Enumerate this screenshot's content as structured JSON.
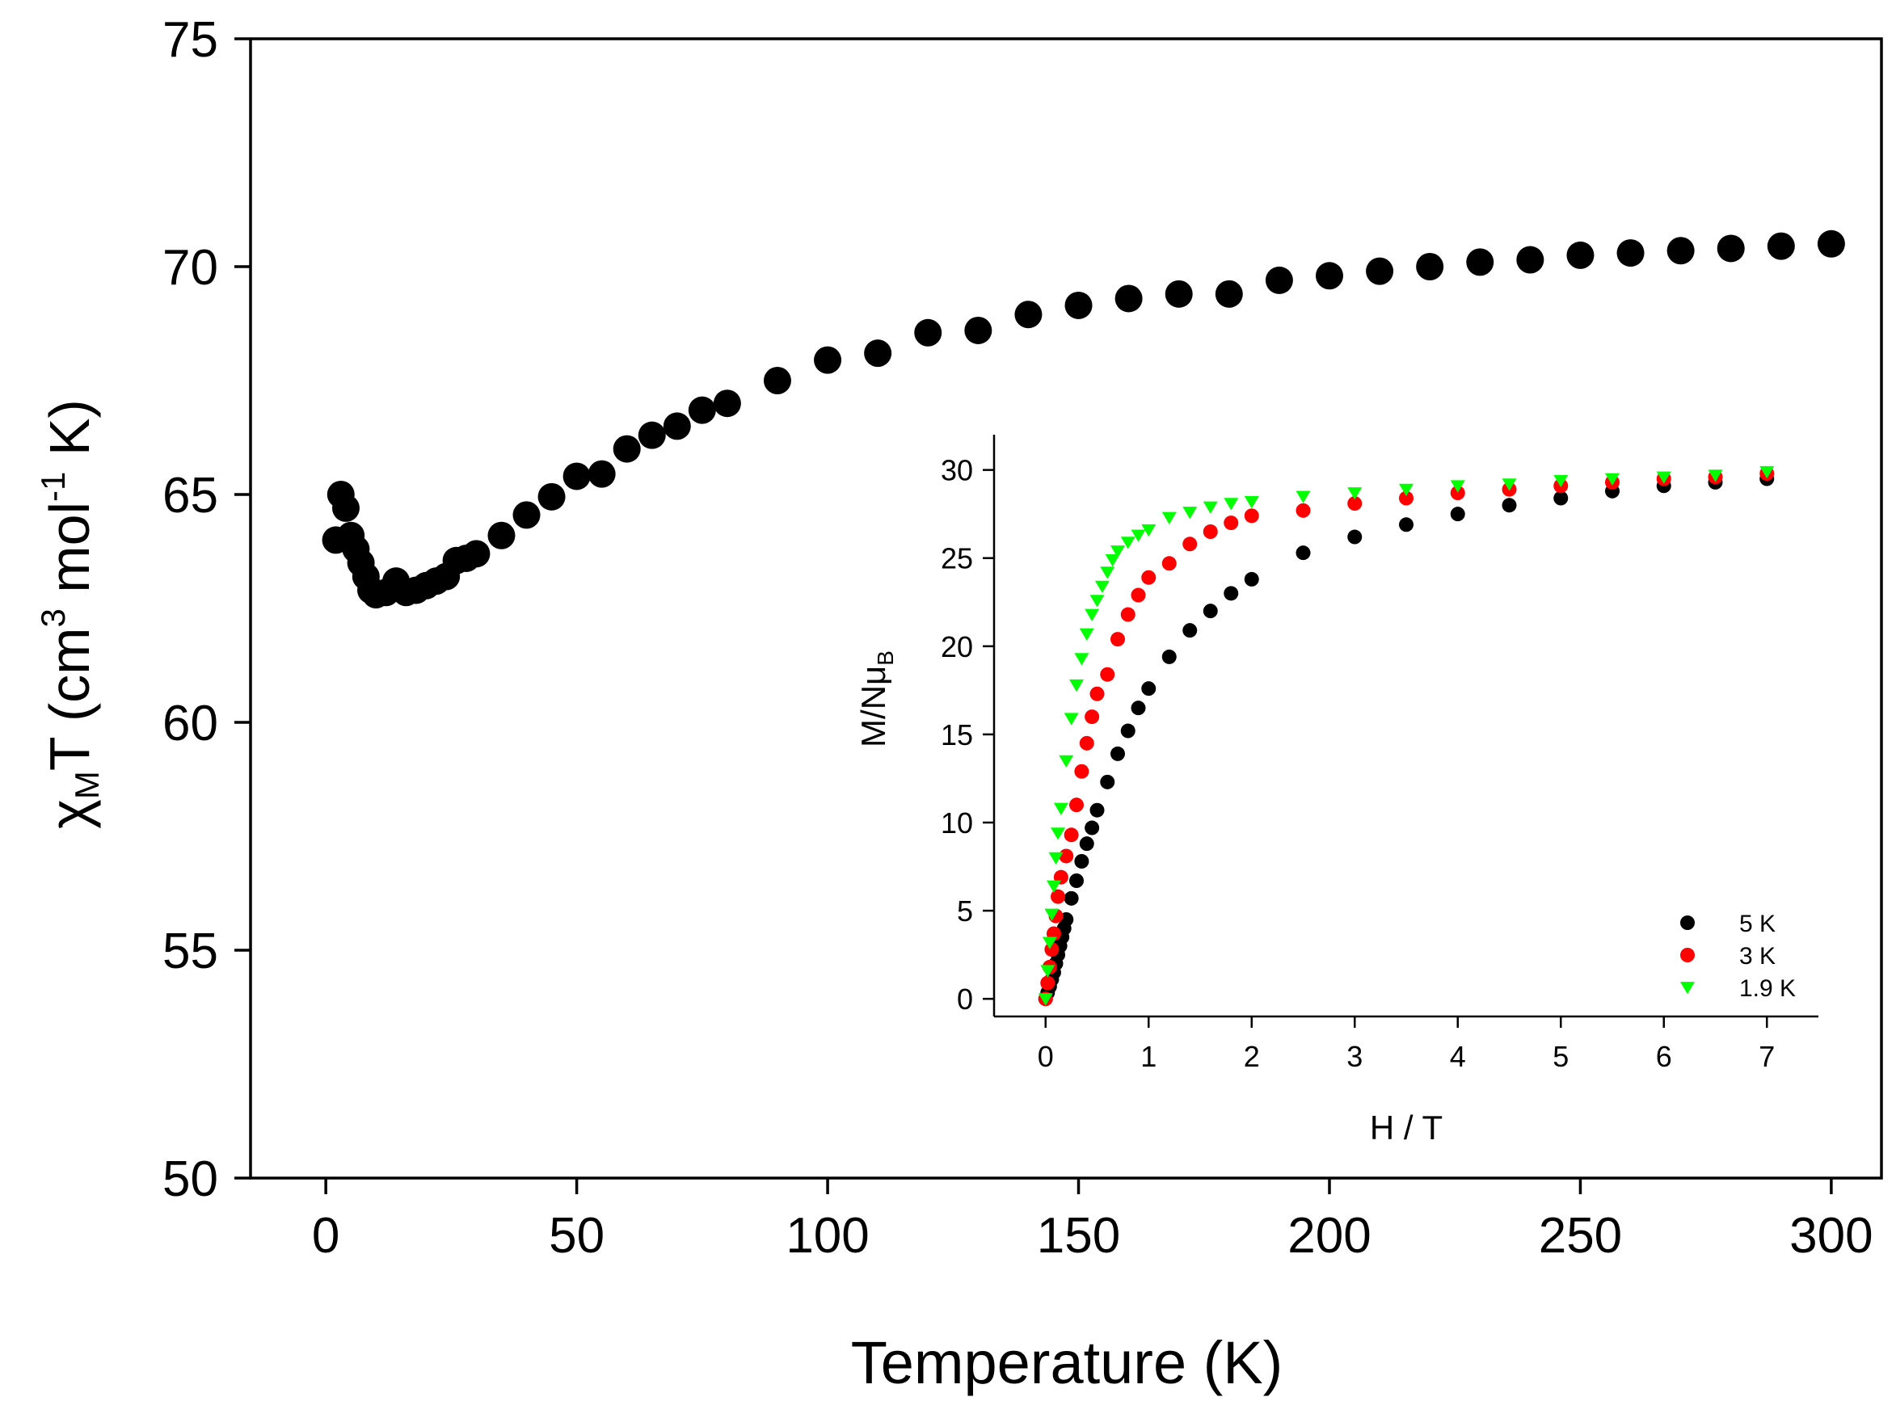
{
  "chart_data": [
    {
      "type": "scatter",
      "panel": "main",
      "xlabel": "Temperature (K)",
      "ylabel": {
        "chi": "χ",
        "sub_M": "M",
        "T": "T (cm",
        "sup_3": "3",
        "mol": " mol",
        "sup_neg1": "-1",
        "K": " K)"
      },
      "xlim": [
        -15,
        310
      ],
      "ylim": [
        50,
        75
      ],
      "xticks": [
        "0",
        "50",
        "100",
        "150",
        "200",
        "250",
        "300"
      ],
      "yticks": [
        "50",
        "55",
        "60",
        "65",
        "70",
        "75"
      ],
      "series": [
        {
          "name": "chiMT",
          "color": "#000000",
          "marker": "circle",
          "x": [
            2,
            3,
            4,
            5,
            6,
            7,
            8,
            9,
            10,
            12,
            14,
            16,
            18,
            20,
            22,
            24,
            26,
            28,
            30,
            35,
            40,
            45,
            50,
            55,
            60,
            65,
            70,
            75,
            80,
            90,
            100,
            110,
            120,
            130,
            140,
            150,
            160,
            170,
            180,
            190,
            200,
            210,
            220,
            230,
            240,
            250,
            260,
            270,
            280,
            290,
            300
          ],
          "y": [
            64.0,
            65.0,
            64.7,
            64.1,
            63.8,
            63.5,
            63.2,
            62.9,
            62.8,
            62.85,
            63.1,
            62.85,
            62.9,
            63.0,
            63.1,
            63.2,
            63.55,
            63.6,
            63.7,
            64.1,
            64.55,
            64.95,
            65.4,
            65.45,
            66.0,
            66.3,
            66.5,
            66.85,
            67.0,
            67.5,
            67.95,
            68.1,
            68.55,
            68.6,
            68.95,
            69.15,
            69.3,
            69.4,
            69.4,
            69.7,
            69.8,
            69.9,
            70.0,
            70.1,
            70.15,
            70.25,
            70.3,
            70.35,
            70.4,
            70.45,
            70.5
          ]
        }
      ]
    },
    {
      "type": "scatter",
      "panel": "inset",
      "xlabel": "H / T",
      "ylabel": {
        "main": "M/Nμ",
        "sub": "B"
      },
      "xlim": [
        -0.5,
        7.5
      ],
      "ylim": [
        -1,
        32
      ],
      "xticks": [
        "0",
        "1",
        "2",
        "3",
        "4",
        "5",
        "6",
        "7"
      ],
      "yticks": [
        "0",
        "5",
        "10",
        "15",
        "20",
        "25",
        "30"
      ],
      "legend_position": "bottom-right",
      "series": [
        {
          "name": "5 K",
          "color": "#000000",
          "marker": "circle",
          "x": [
            0,
            0.02,
            0.04,
            0.06,
            0.08,
            0.1,
            0.12,
            0.14,
            0.16,
            0.18,
            0.2,
            0.25,
            0.3,
            0.35,
            0.4,
            0.45,
            0.5,
            0.6,
            0.7,
            0.8,
            0.9,
            1.0,
            1.2,
            1.4,
            1.6,
            1.8,
            2.0,
            2.5,
            3.0,
            3.5,
            4.0,
            4.5,
            5.0,
            5.5,
            6.0,
            6.5,
            7.0
          ],
          "y": [
            0.0,
            0.35,
            0.7,
            1.1,
            1.5,
            2.0,
            2.5,
            3.0,
            3.5,
            4.0,
            4.5,
            5.7,
            6.7,
            7.8,
            8.8,
            9.7,
            10.7,
            12.3,
            13.9,
            15.2,
            16.5,
            17.6,
            19.4,
            20.9,
            22.0,
            23.0,
            23.8,
            25.3,
            26.2,
            26.9,
            27.5,
            28.0,
            28.4,
            28.8,
            29.1,
            29.3,
            29.5
          ]
        },
        {
          "name": "3 K",
          "color": "#ff0000",
          "marker": "circle",
          "x": [
            0,
            0.02,
            0.04,
            0.06,
            0.08,
            0.1,
            0.12,
            0.15,
            0.2,
            0.25,
            0.3,
            0.35,
            0.4,
            0.45,
            0.5,
            0.6,
            0.7,
            0.8,
            0.9,
            1.0,
            1.2,
            1.4,
            1.6,
            1.8,
            2.0,
            2.5,
            3.0,
            3.5,
            4.0,
            4.5,
            5.0,
            5.5,
            6.0,
            6.5,
            7.0
          ],
          "y": [
            0.0,
            0.9,
            1.8,
            2.8,
            3.7,
            4.7,
            5.8,
            6.9,
            8.1,
            9.3,
            11.0,
            12.9,
            14.5,
            16.0,
            17.3,
            18.4,
            20.4,
            21.8,
            22.9,
            23.9,
            24.7,
            25.8,
            26.5,
            27.0,
            27.4,
            27.7,
            28.1,
            28.4,
            28.7,
            28.9,
            29.1,
            29.3,
            29.5,
            29.6,
            29.8
          ]
        },
        {
          "name": "1.9 K",
          "color": "#00ff00",
          "marker": "triangle-down",
          "x": [
            0,
            0.02,
            0.04,
            0.06,
            0.08,
            0.1,
            0.12,
            0.15,
            0.2,
            0.25,
            0.3,
            0.35,
            0.4,
            0.45,
            0.5,
            0.55,
            0.6,
            0.65,
            0.7,
            0.8,
            0.9,
            1.0,
            1.2,
            1.4,
            1.6,
            1.8,
            2.0,
            2.5,
            3.0,
            3.5,
            4.0,
            4.5,
            5.0,
            5.5,
            6.0,
            6.5,
            7.0
          ],
          "y": [
            0.0,
            1.6,
            3.2,
            4.8,
            6.4,
            8.0,
            9.4,
            10.8,
            13.5,
            15.9,
            17.8,
            19.3,
            20.7,
            21.8,
            22.6,
            23.4,
            24.2,
            24.9,
            25.4,
            25.9,
            26.3,
            26.6,
            27.3,
            27.6,
            27.9,
            28.1,
            28.2,
            28.5,
            28.7,
            28.9,
            29.1,
            29.2,
            29.4,
            29.5,
            29.6,
            29.7,
            29.9
          ]
        }
      ]
    }
  ]
}
